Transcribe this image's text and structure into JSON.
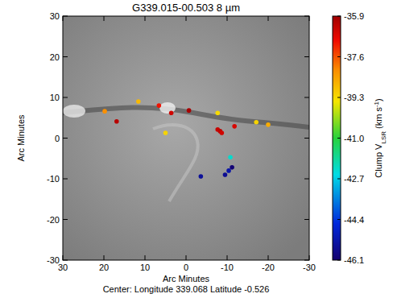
{
  "chart_data": {
    "type": "scatter",
    "title": "G339.015-00.503  8 µm",
    "x_label": "Arc Minutes",
    "y_label": "Arc Minutes",
    "annotation": "Center:  Longitude 339.068 Latitude -0.526",
    "xlim": [
      30,
      -30
    ],
    "ylim": [
      -30,
      30
    ],
    "xticks": [
      30,
      20,
      10,
      0,
      -10,
      -20,
      -30
    ],
    "yticks": [
      -30,
      -20,
      -10,
      0,
      10,
      20,
      30
    ],
    "x": [
      19.8,
      16.9,
      11.6,
      6.6,
      3.6,
      5.0,
      -0.7,
      -7.7,
      -7.7,
      -8.3,
      -8.7,
      -11.8,
      -17.1,
      -20.0,
      -10.8,
      -3.6,
      -9.5,
      -10.4,
      -11.2
    ],
    "values": [
      6.6,
      4.1,
      9.0,
      8.0,
      6.2,
      1.3,
      6.8,
      6.2,
      2.1,
      1.7,
      1.3,
      2.9,
      3.9,
      3.3,
      -4.7,
      -9.4,
      -9.0,
      -8.0,
      -7.2
    ],
    "clump_vlsr": [
      -38.2,
      -36.2,
      -38.8,
      -37.0,
      -36.5,
      -39.2,
      -36.0,
      -39.3,
      -36.4,
      -36.3,
      -36.5,
      -36.6,
      -39.2,
      -38.6,
      -42.3,
      -45.5,
      -45.6,
      -45.3,
      -46.0
    ],
    "colorbar": {
      "range": [
        -46.1,
        -35.9
      ],
      "ticks": [
        -35.9,
        -37.6,
        -39.3,
        {
          "value": -41.0,
          "label": "-41.0"
        },
        -42.7,
        -44.4,
        -46.1
      ],
      "label": [
        "Clump V",
        "LSR",
        " (km s",
        "-1",
        ")"
      ]
    }
  }
}
